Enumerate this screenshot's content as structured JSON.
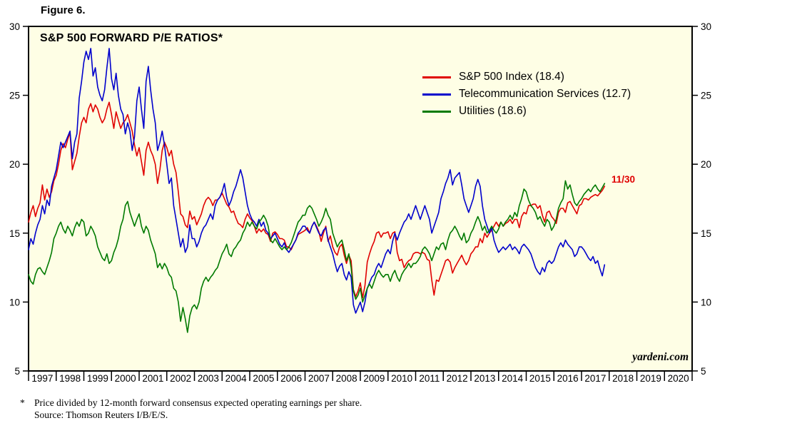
{
  "figure_label": "Figure 6.",
  "watermark": "yardeni.com",
  "annotation": {
    "text": "11/30",
    "color": "#E00000"
  },
  "footnote": {
    "marker": "*",
    "line1": "Price divided by 12-month forward consensus expected operating earnings per share.",
    "line2": "Source: Thomson Reuters I/B/E/S."
  },
  "chart_data": {
    "type": "line",
    "title": "S&P 500 FORWARD P/E RATIOS*",
    "xlabel": "",
    "ylabel": "",
    "ylim": [
      5,
      30
    ],
    "xlim": [
      1997,
      2021
    ],
    "yticks": [
      5,
      10,
      15,
      20,
      25,
      30
    ],
    "xtick_years": [
      1997,
      1998,
      1999,
      2000,
      2001,
      2002,
      2003,
      2004,
      2005,
      2006,
      2007,
      2008,
      2009,
      2010,
      2011,
      2012,
      2013,
      2014,
      2015,
      2016,
      2017,
      2018,
      2019,
      2020
    ],
    "grid": false,
    "legend_position": "inside-top-right",
    "plot_bg": "#FEFEE5",
    "x_start": 1997.0,
    "points_per_year": 12,
    "last_point_label": "11/30",
    "series": [
      {
        "name": "S&P 500 Index (18.4)",
        "color": "#E00000",
        "last_value": 18.4,
        "values": [
          15.8,
          16.5,
          17.0,
          16.2,
          16.8,
          17.2,
          18.5,
          17.4,
          18.2,
          17.6,
          18.0,
          18.8,
          19.2,
          20.0,
          21.0,
          21.5,
          21.2,
          21.8,
          22.3,
          19.6,
          20.2,
          20.8,
          22.0,
          23.0,
          23.4,
          23.0,
          24.0,
          24.4,
          23.8,
          24.3,
          24.0,
          23.4,
          23.0,
          23.3,
          24.0,
          24.5,
          23.6,
          22.6,
          23.8,
          23.2,
          22.6,
          23.0,
          23.2,
          23.6,
          23.0,
          22.4,
          21.4,
          20.6,
          21.2,
          20.2,
          19.2,
          21.0,
          21.6,
          21.0,
          20.6,
          20.0,
          18.6,
          19.6,
          21.0,
          21.6,
          21.2,
          20.6,
          21.0,
          20.0,
          19.4,
          18.0,
          16.4,
          16.2,
          15.6,
          15.4,
          16.6,
          16.0,
          16.2,
          15.6,
          16.0,
          16.4,
          17.0,
          17.4,
          17.6,
          17.4,
          17.0,
          17.4,
          17.4,
          17.6,
          17.9,
          17.5,
          17.1,
          16.9,
          16.5,
          16.6,
          16.1,
          15.7,
          15.6,
          15.4,
          16.0,
          16.4,
          16.1,
          15.9,
          15.5,
          15.0,
          15.3,
          15.1,
          15.3,
          15.0,
          14.9,
          14.4,
          15.0,
          15.1,
          14.9,
          14.6,
          14.6,
          14.5,
          14.0,
          14.0,
          13.8,
          14.2,
          14.5,
          14.9,
          15.0,
          15.1,
          15.2,
          15.4,
          15.0,
          15.5,
          15.8,
          15.5,
          15.1,
          14.4,
          15.0,
          15.5,
          14.4,
          14.8,
          14.0,
          13.6,
          13.4,
          14.0,
          14.2,
          13.4,
          12.8,
          13.4,
          13.0,
          10.9,
          10.4,
          10.8,
          11.4,
          10.3,
          11.2,
          12.9,
          13.5,
          14.0,
          14.4,
          15.0,
          15.1,
          14.7,
          15.0,
          15.0,
          15.1,
          14.6,
          15.0,
          15.1,
          13.6,
          13.0,
          13.1,
          12.5,
          12.8,
          13.0,
          13.1,
          13.5,
          13.6,
          13.6,
          13.5,
          13.6,
          13.5,
          13.1,
          13.0,
          11.6,
          10.5,
          11.6,
          11.5,
          12.0,
          12.5,
          13.0,
          13.1,
          12.9,
          12.1,
          12.5,
          12.8,
          13.1,
          13.4,
          13.0,
          12.7,
          13.0,
          13.5,
          13.7,
          14.0,
          14.0,
          14.6,
          14.3,
          15.0,
          14.7,
          15.0,
          15.2,
          15.5,
          15.8,
          15.5,
          15.8,
          15.5,
          15.7,
          15.8,
          16.0,
          15.7,
          16.0,
          16.0,
          15.4,
          16.2,
          16.5,
          16.4,
          17.0,
          17.0,
          17.1,
          17.1,
          16.8,
          17.0,
          16.3,
          15.8,
          16.5,
          16.6,
          16.2,
          16.0,
          15.7,
          16.5,
          16.8,
          16.8,
          16.5,
          17.2,
          17.3,
          17.0,
          16.7,
          16.4,
          17.0,
          17.1,
          17.5,
          17.5,
          17.4,
          17.6,
          17.7,
          17.8,
          17.7,
          17.9,
          18.1,
          18.4
        ]
      },
      {
        "name": "Telecommunication Services (12.7)",
        "color": "#0000CC",
        "last_value": 12.7,
        "values": [
          13.8,
          14.6,
          14.2,
          15.0,
          15.6,
          16.0,
          17.0,
          16.4,
          17.4,
          17.0,
          18.4,
          19.0,
          19.6,
          20.6,
          21.6,
          21.2,
          21.6,
          22.0,
          22.4,
          20.4,
          21.6,
          22.2,
          24.8,
          26.0,
          27.4,
          28.2,
          27.6,
          28.4,
          26.4,
          27.0,
          25.6,
          25.0,
          24.6,
          25.4,
          27.0,
          28.4,
          26.2,
          25.4,
          26.6,
          25.0,
          24.0,
          23.6,
          22.2,
          23.0,
          22.4,
          21.0,
          22.0,
          24.6,
          25.6,
          24.0,
          22.6,
          26.0,
          27.1,
          25.4,
          24.0,
          23.0,
          21.0,
          21.6,
          22.4,
          21.4,
          20.0,
          18.6,
          19.0,
          17.0,
          16.0,
          15.0,
          14.0,
          14.6,
          13.6,
          14.0,
          15.6,
          14.6,
          14.6,
          14.0,
          14.4,
          15.0,
          15.4,
          15.6,
          16.0,
          16.4,
          16.0,
          17.0,
          17.4,
          17.6,
          18.0,
          18.6,
          17.6,
          17.0,
          17.4,
          18.0,
          18.4,
          19.0,
          19.6,
          19.0,
          18.0,
          17.0,
          16.4,
          16.0,
          15.8,
          15.5,
          16.0,
          15.5,
          15.8,
          15.2,
          15.0,
          14.6,
          14.8,
          15.0,
          14.6,
          14.2,
          14.0,
          14.3,
          13.8,
          13.6,
          13.9,
          14.2,
          14.5,
          15.0,
          15.2,
          15.5,
          15.5,
          15.2,
          15.0,
          15.5,
          15.8,
          15.4,
          15.0,
          14.8,
          15.2,
          15.4,
          14.5,
          14.0,
          13.5,
          12.8,
          12.2,
          12.6,
          12.8,
          12.0,
          11.6,
          12.2,
          11.8,
          9.8,
          9.2,
          9.6,
          10.0,
          9.3,
          10.0,
          11.0,
          11.4,
          11.8,
          12.0,
          12.5,
          12.8,
          12.5,
          13.0,
          13.5,
          13.8,
          13.5,
          14.4,
          15.0,
          14.5,
          15.0,
          15.4,
          15.8,
          16.0,
          16.4,
          16.0,
          16.5,
          17.0,
          16.5,
          16.0,
          16.5,
          17.0,
          16.5,
          16.0,
          15.0,
          15.5,
          16.0,
          16.5,
          17.5,
          18.0,
          18.6,
          19.0,
          19.6,
          18.5,
          19.0,
          19.2,
          19.4,
          18.5,
          17.5,
          17.0,
          16.5,
          17.0,
          17.5,
          18.4,
          18.9,
          18.4,
          17.0,
          16.0,
          15.5,
          15.0,
          15.4,
          14.5,
          14.0,
          13.6,
          13.8,
          14.0,
          13.8,
          14.0,
          14.2,
          13.8,
          14.0,
          13.8,
          13.5,
          14.0,
          14.2,
          14.0,
          13.8,
          13.5,
          13.0,
          12.5,
          12.2,
          12.0,
          12.5,
          12.2,
          12.8,
          13.0,
          12.8,
          13.0,
          13.5,
          14.0,
          14.3,
          14.0,
          14.5,
          14.2,
          14.0,
          13.8,
          13.3,
          13.5,
          14.0,
          14.0,
          13.8,
          13.5,
          13.2,
          13.0,
          13.3,
          12.8,
          13.0,
          12.4,
          11.9,
          12.7
        ]
      },
      {
        "name": "Utilities (18.6)",
        "color": "#007A00",
        "last_value": 18.6,
        "values": [
          12.0,
          11.5,
          11.3,
          12.0,
          12.4,
          12.5,
          12.2,
          12.0,
          12.5,
          13.0,
          13.6,
          14.6,
          15.0,
          15.5,
          15.8,
          15.3,
          15.0,
          15.5,
          15.2,
          14.8,
          15.4,
          15.8,
          15.5,
          16.0,
          15.8,
          14.8,
          15.0,
          15.5,
          15.2,
          14.8,
          14.0,
          13.6,
          13.2,
          13.0,
          13.5,
          12.8,
          13.0,
          13.6,
          14.0,
          14.6,
          15.5,
          16.0,
          17.0,
          17.3,
          16.5,
          16.0,
          15.5,
          16.0,
          16.4,
          15.5,
          15.0,
          15.5,
          15.2,
          14.5,
          14.0,
          13.5,
          12.5,
          12.8,
          12.4,
          12.8,
          12.5,
          12.0,
          11.8,
          11.0,
          10.8,
          10.0,
          8.6,
          9.6,
          8.8,
          7.8,
          9.0,
          9.6,
          9.8,
          9.5,
          10.0,
          11.0,
          11.5,
          11.8,
          11.5,
          11.8,
          12.0,
          12.3,
          12.5,
          13.0,
          13.5,
          13.8,
          14.2,
          13.5,
          13.3,
          13.8,
          14.0,
          14.3,
          14.5,
          15.0,
          15.3,
          15.8,
          15.5,
          15.8,
          15.5,
          15.3,
          15.8,
          16.0,
          16.3,
          16.0,
          15.5,
          14.5,
          14.3,
          14.6,
          14.3,
          14.0,
          13.8,
          14.0,
          13.8,
          14.0,
          14.3,
          14.8,
          15.3,
          15.8,
          16.0,
          16.3,
          16.3,
          16.8,
          17.0,
          16.8,
          16.4,
          16.0,
          15.5,
          15.8,
          16.2,
          16.8,
          16.3,
          16.0,
          15.0,
          14.5,
          14.0,
          14.3,
          14.5,
          13.8,
          13.0,
          13.5,
          12.5,
          10.8,
          10.2,
          10.5,
          11.0,
          10.0,
          10.5,
          11.0,
          11.3,
          11.0,
          11.5,
          12.0,
          12.3,
          12.0,
          11.8,
          12.0,
          12.0,
          11.5,
          12.0,
          12.3,
          11.8,
          11.5,
          12.0,
          12.3,
          12.5,
          12.8,
          12.5,
          12.8,
          12.8,
          13.0,
          13.3,
          13.8,
          14.0,
          13.8,
          13.5,
          13.0,
          13.5,
          14.0,
          13.8,
          14.2,
          14.3,
          13.8,
          14.5,
          15.0,
          15.2,
          15.5,
          15.2,
          14.8,
          14.5,
          15.0,
          14.3,
          14.5,
          15.0,
          15.3,
          15.8,
          16.2,
          15.8,
          15.2,
          15.5,
          15.0,
          15.2,
          15.5,
          15.2,
          15.0,
          15.3,
          15.8,
          15.5,
          15.8,
          16.0,
          16.3,
          16.0,
          16.5,
          16.2,
          17.0,
          17.5,
          18.2,
          18.0,
          17.4,
          17.0,
          16.8,
          16.5,
          16.0,
          16.2,
          15.8,
          15.5,
          16.0,
          15.8,
          15.2,
          15.5,
          16.0,
          16.8,
          17.2,
          17.5,
          18.8,
          18.2,
          18.5,
          17.8,
          17.2,
          17.0,
          17.3,
          17.5,
          17.8,
          18.0,
          18.2,
          18.0,
          18.3,
          18.5,
          18.2,
          18.0,
          18.3,
          18.6
        ]
      }
    ]
  }
}
